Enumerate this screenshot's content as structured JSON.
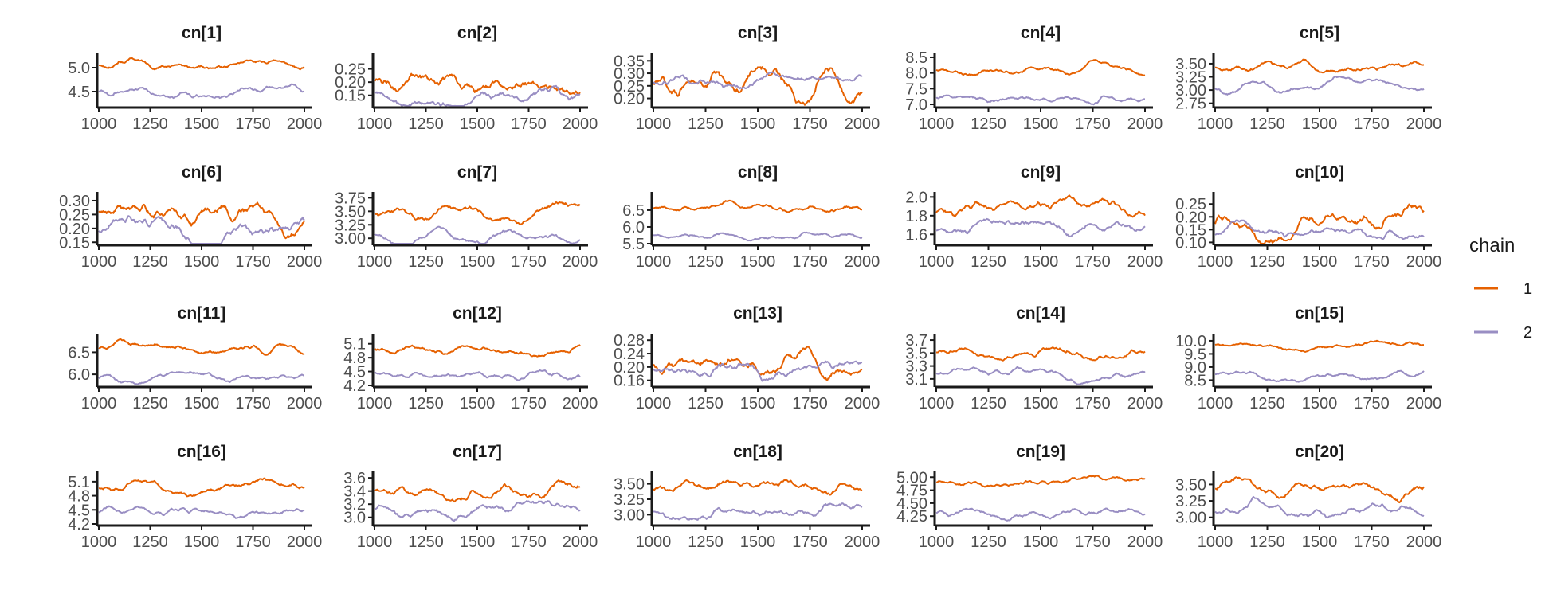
{
  "legend": {
    "title": "chain",
    "entries": [
      {
        "label": "1",
        "color": "#E66101"
      },
      {
        "label": "2",
        "color": "#998EC3"
      }
    ]
  },
  "chart_data": [
    {
      "type": "line",
      "title": "cn[1]",
      "xlim": [
        1000,
        2000
      ],
      "xticks": [
        1000,
        1250,
        1500,
        1750,
        2000
      ],
      "ylim": [
        4.2,
        5.25
      ],
      "yticks": [
        "4.5",
        "5.0"
      ],
      "series": [
        {
          "name": "1",
          "color": "#E66101",
          "level": 5.05,
          "vol": 0.045
        },
        {
          "name": "2",
          "color": "#998EC3",
          "level": 4.48,
          "vol": 0.05
        }
      ]
    },
    {
      "type": "line",
      "title": "cn[2]",
      "xlim": [
        1000,
        2000
      ],
      "xticks": [
        1000,
        1250,
        1500,
        1750,
        2000
      ],
      "ylim": [
        0.11,
        0.3
      ],
      "yticks": [
        "0.15",
        "0.20",
        "0.25"
      ],
      "series": [
        {
          "name": "1",
          "color": "#E66101",
          "level": 0.2,
          "vol": 0.02
        },
        {
          "name": "2",
          "color": "#998EC3",
          "level": 0.16,
          "vol": 0.015
        }
      ]
    },
    {
      "type": "line",
      "title": "cn[3]",
      "xlim": [
        1000,
        2000
      ],
      "xticks": [
        1000,
        1250,
        1500,
        1750,
        2000
      ],
      "ylim": [
        0.17,
        0.37
      ],
      "yticks": [
        "0.20",
        "0.25",
        "0.30",
        "0.35"
      ],
      "series": [
        {
          "name": "1",
          "color": "#E66101",
          "level": 0.27,
          "vol": 0.025
        },
        {
          "name": "2",
          "color": "#998EC3",
          "level": 0.265,
          "vol": 0.012
        }
      ]
    },
    {
      "type": "line",
      "title": "cn[4]",
      "xlim": [
        1000,
        2000
      ],
      "xticks": [
        1000,
        1250,
        1500,
        1750,
        2000
      ],
      "ylim": [
        6.95,
        8.55
      ],
      "yticks": [
        "7.0",
        "7.5",
        "8.0",
        "8.5"
      ],
      "series": [
        {
          "name": "1",
          "color": "#E66101",
          "level": 8.1,
          "vol": 0.07
        },
        {
          "name": "2",
          "color": "#998EC3",
          "level": 7.2,
          "vol": 0.07
        }
      ]
    },
    {
      "type": "line",
      "title": "cn[5]",
      "xlim": [
        1000,
        2000
      ],
      "xticks": [
        1000,
        1250,
        1500,
        1750,
        2000
      ],
      "ylim": [
        2.7,
        3.65
      ],
      "yticks": [
        "2.75",
        "3.00",
        "3.25",
        "3.50"
      ],
      "series": [
        {
          "name": "1",
          "color": "#E66101",
          "level": 3.42,
          "vol": 0.045
        },
        {
          "name": "2",
          "color": "#998EC3",
          "level": 3.05,
          "vol": 0.045
        }
      ]
    },
    {
      "type": "line",
      "title": "cn[6]",
      "xlim": [
        1000,
        2000
      ],
      "xticks": [
        1000,
        1250,
        1500,
        1750,
        2000
      ],
      "ylim": [
        0.145,
        0.32
      ],
      "yticks": [
        "0.15",
        "0.20",
        "0.25",
        "0.30"
      ],
      "series": [
        {
          "name": "1",
          "color": "#E66101",
          "level": 0.255,
          "vol": 0.02
        },
        {
          "name": "2",
          "color": "#998EC3",
          "level": 0.195,
          "vol": 0.018
        }
      ]
    },
    {
      "type": "line",
      "title": "cn[7]",
      "xlim": [
        1000,
        2000
      ],
      "xticks": [
        1000,
        1250,
        1500,
        1750,
        2000
      ],
      "ylim": [
        2.9,
        3.8
      ],
      "yticks": [
        "3.00",
        "3.25",
        "3.50",
        "3.75"
      ],
      "series": [
        {
          "name": "1",
          "color": "#E66101",
          "level": 3.45,
          "vol": 0.06
        },
        {
          "name": "2",
          "color": "#998EC3",
          "level": 3.08,
          "vol": 0.05
        }
      ]
    },
    {
      "type": "line",
      "title": "cn[8]",
      "xlim": [
        1000,
        2000
      ],
      "xticks": [
        1000,
        1250,
        1500,
        1750,
        2000
      ],
      "ylim": [
        5.5,
        6.95
      ],
      "yticks": [
        "5.5",
        "6.0",
        "6.5"
      ],
      "series": [
        {
          "name": "1",
          "color": "#E66101",
          "level": 6.55,
          "vol": 0.06
        },
        {
          "name": "2",
          "color": "#998EC3",
          "level": 5.75,
          "vol": 0.05
        }
      ]
    },
    {
      "type": "line",
      "title": "cn[9]",
      "xlim": [
        1000,
        2000
      ],
      "xticks": [
        1000,
        1250,
        1500,
        1750,
        2000
      ],
      "ylim": [
        1.5,
        2.02
      ],
      "yticks": [
        "1.6",
        "1.8",
        "2.0"
      ],
      "series": [
        {
          "name": "1",
          "color": "#E66101",
          "level": 1.82,
          "vol": 0.04
        },
        {
          "name": "2",
          "color": "#998EC3",
          "level": 1.65,
          "vol": 0.035
        }
      ]
    },
    {
      "type": "line",
      "title": "cn[10]",
      "xlim": [
        1000,
        2000
      ],
      "xticks": [
        1000,
        1250,
        1500,
        1750,
        2000
      ],
      "ylim": [
        0.095,
        0.285
      ],
      "yticks": [
        "0.10",
        "0.15",
        "0.20",
        "0.25"
      ],
      "series": [
        {
          "name": "1",
          "color": "#E66101",
          "level": 0.175,
          "vol": 0.02
        },
        {
          "name": "2",
          "color": "#998EC3",
          "level": 0.13,
          "vol": 0.012
        }
      ]
    },
    {
      "type": "line",
      "title": "cn[11]",
      "xlim": [
        1000,
        2000
      ],
      "xticks": [
        1000,
        1250,
        1500,
        1750,
        2000
      ],
      "ylim": [
        5.75,
        6.85
      ],
      "yticks": [
        "6.0",
        "6.5"
      ],
      "series": [
        {
          "name": "1",
          "color": "#E66101",
          "level": 6.6,
          "vol": 0.05
        },
        {
          "name": "2",
          "color": "#998EC3",
          "level": 5.9,
          "vol": 0.045
        }
      ]
    },
    {
      "type": "line",
      "title": "cn[12]",
      "xlim": [
        1000,
        2000
      ],
      "xticks": [
        1000,
        1250,
        1500,
        1750,
        2000
      ],
      "ylim": [
        4.2,
        5.25
      ],
      "yticks": [
        "4.2",
        "4.5",
        "4.8",
        "5.1"
      ],
      "series": [
        {
          "name": "1",
          "color": "#E66101",
          "level": 5.0,
          "vol": 0.05
        },
        {
          "name": "2",
          "color": "#998EC3",
          "level": 4.45,
          "vol": 0.05
        }
      ]
    },
    {
      "type": "line",
      "title": "cn[13]",
      "xlim": [
        1000,
        2000
      ],
      "xticks": [
        1000,
        1250,
        1500,
        1750,
        2000
      ],
      "ylim": [
        0.145,
        0.29
      ],
      "yticks": [
        "0.16",
        "0.20",
        "0.24",
        "0.28"
      ],
      "series": [
        {
          "name": "1",
          "color": "#E66101",
          "level": 0.205,
          "vol": 0.015
        },
        {
          "name": "2",
          "color": "#998EC3",
          "level": 0.195,
          "vol": 0.012
        }
      ]
    },
    {
      "type": "line",
      "title": "cn[14]",
      "xlim": [
        1000,
        2000
      ],
      "xticks": [
        1000,
        1250,
        1500,
        1750,
        2000
      ],
      "ylim": [
        3.0,
        3.75
      ],
      "yticks": [
        "3.1",
        "3.3",
        "3.5",
        "3.7"
      ],
      "series": [
        {
          "name": "1",
          "color": "#E66101",
          "level": 3.52,
          "vol": 0.04
        },
        {
          "name": "2",
          "color": "#998EC3",
          "level": 3.18,
          "vol": 0.035
        }
      ]
    },
    {
      "type": "line",
      "title": "cn[15]",
      "xlim": [
        1000,
        2000
      ],
      "xticks": [
        1000,
        1250,
        1500,
        1750,
        2000
      ],
      "ylim": [
        8.3,
        10.15
      ],
      "yticks": [
        "8.5",
        "9.0",
        "9.5",
        "10.0"
      ],
      "series": [
        {
          "name": "1",
          "color": "#E66101",
          "level": 9.85,
          "vol": 0.06
        },
        {
          "name": "2",
          "color": "#998EC3",
          "level": 8.7,
          "vol": 0.07
        }
      ]
    },
    {
      "type": "line",
      "title": "cn[16]",
      "xlim": [
        1000,
        2000
      ],
      "xticks": [
        1000,
        1250,
        1500,
        1750,
        2000
      ],
      "ylim": [
        4.2,
        5.25
      ],
      "yticks": [
        "4.2",
        "4.5",
        "4.8",
        "5.1"
      ],
      "series": [
        {
          "name": "1",
          "color": "#E66101",
          "level": 4.95,
          "vol": 0.05
        },
        {
          "name": "2",
          "color": "#998EC3",
          "level": 4.45,
          "vol": 0.045
        }
      ]
    },
    {
      "type": "line",
      "title": "cn[17]",
      "xlim": [
        1000,
        2000
      ],
      "xticks": [
        1000,
        1250,
        1500,
        1750,
        2000
      ],
      "ylim": [
        2.9,
        3.65
      ],
      "yticks": [
        "3.0",
        "3.2",
        "3.4",
        "3.6"
      ],
      "series": [
        {
          "name": "1",
          "color": "#E66101",
          "level": 3.42,
          "vol": 0.05
        },
        {
          "name": "2",
          "color": "#998EC3",
          "level": 3.12,
          "vol": 0.05
        }
      ]
    },
    {
      "type": "line",
      "title": "cn[18]",
      "xlim": [
        1000,
        2000
      ],
      "xticks": [
        1000,
        1250,
        1500,
        1750,
        2000
      ],
      "ylim": [
        2.85,
        3.65
      ],
      "yticks": [
        "3.00",
        "3.25",
        "3.50"
      ],
      "series": [
        {
          "name": "1",
          "color": "#E66101",
          "level": 3.42,
          "vol": 0.05
        },
        {
          "name": "2",
          "color": "#998EC3",
          "level": 3.05,
          "vol": 0.05
        }
      ]
    },
    {
      "type": "line",
      "title": "cn[19]",
      "xlim": [
        1000,
        2000
      ],
      "xticks": [
        1000,
        1250,
        1500,
        1750,
        2000
      ],
      "ylim": [
        4.1,
        5.05
      ],
      "yticks": [
        "4.25",
        "4.50",
        "4.75",
        "5.00"
      ],
      "series": [
        {
          "name": "1",
          "color": "#E66101",
          "level": 4.9,
          "vol": 0.04
        },
        {
          "name": "2",
          "color": "#998EC3",
          "level": 4.3,
          "vol": 0.045
        }
      ]
    },
    {
      "type": "line",
      "title": "cn[20]",
      "xlim": [
        1000,
        2000
      ],
      "xticks": [
        1000,
        1250,
        1500,
        1750,
        2000
      ],
      "ylim": [
        2.9,
        3.65
      ],
      "yticks": [
        "3.00",
        "3.25",
        "3.50"
      ],
      "series": [
        {
          "name": "1",
          "color": "#E66101",
          "level": 3.42,
          "vol": 0.05
        },
        {
          "name": "2",
          "color": "#998EC3",
          "level": 3.1,
          "vol": 0.045
        }
      ]
    }
  ]
}
